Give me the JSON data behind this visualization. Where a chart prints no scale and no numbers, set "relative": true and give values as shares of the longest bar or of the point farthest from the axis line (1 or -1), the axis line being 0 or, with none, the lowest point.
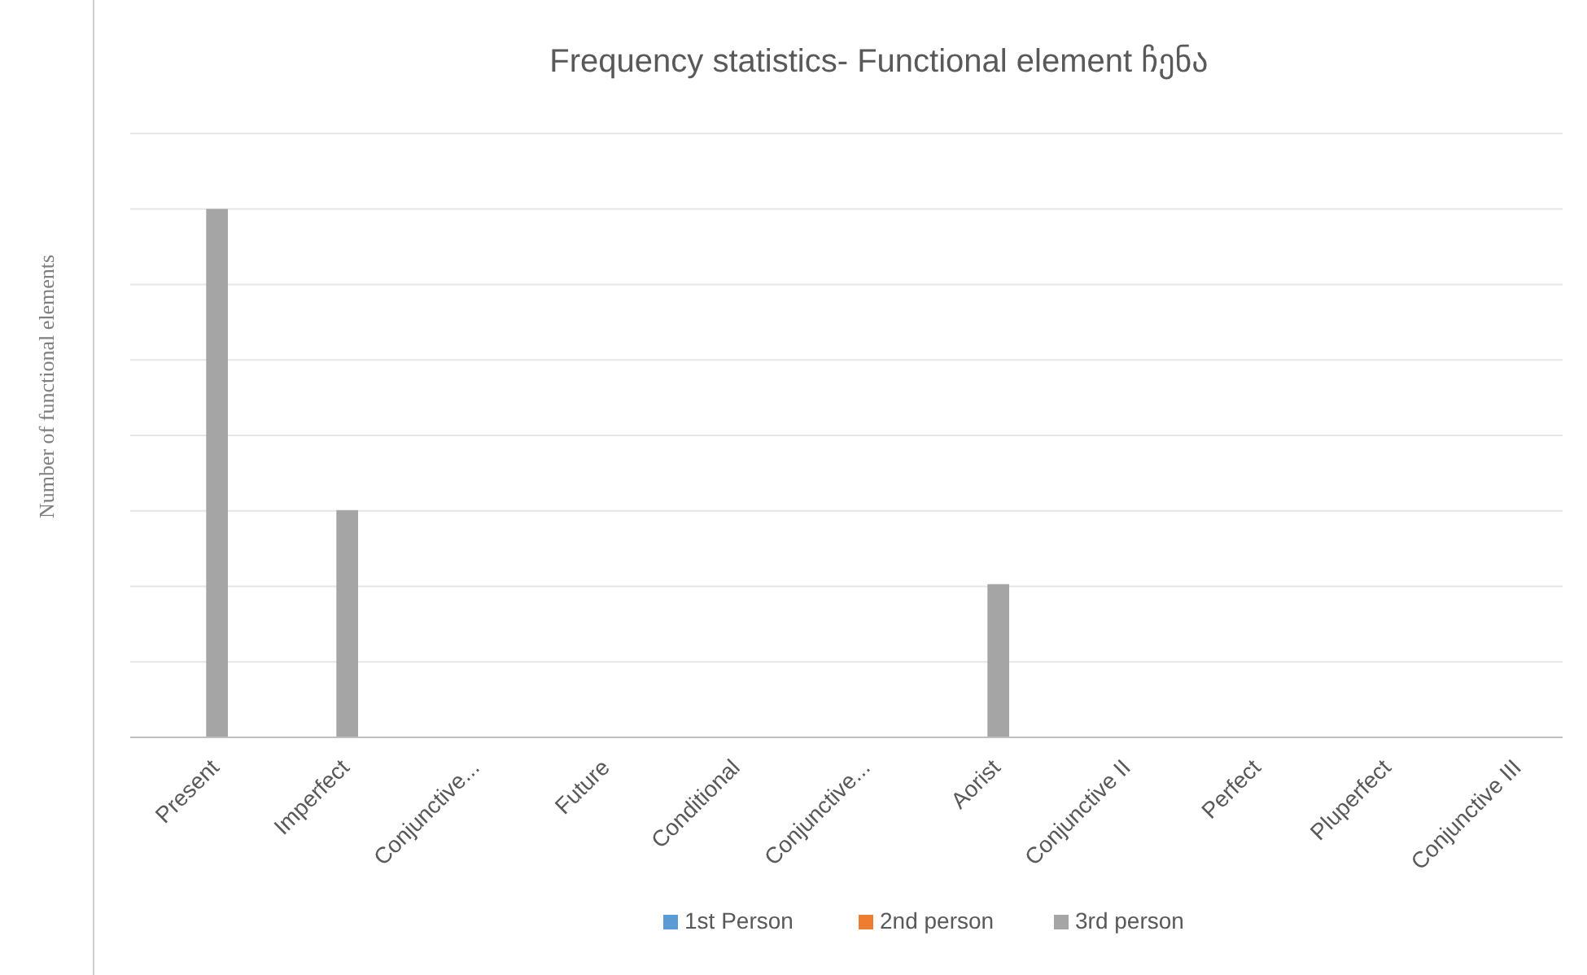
{
  "chart_data": {
    "type": "bar",
    "title": "Frequency statistics- Functional element ჩენა",
    "ylabel": "Number of functional elements",
    "relative": true,
    "grid": "y",
    "legend": "bottom",
    "categories": [
      "Present",
      "Imperfect",
      "Conjunctive...",
      "Future",
      "Conditional",
      "Conjunctive...",
      "Aorist",
      "Conjunctive II",
      "Perfect",
      "Pluperfect",
      "Conjunctive III"
    ],
    "series": [
      {
        "name": "1st Person",
        "color": "#5b9bd5",
        "values": [
          0,
          0,
          0,
          0,
          0,
          0,
          0,
          0,
          0,
          0,
          0
        ]
      },
      {
        "name": "2nd person",
        "color": "#ed7d31",
        "values": [
          0,
          0,
          0,
          0,
          0,
          0,
          0,
          0,
          0,
          0,
          0
        ]
      },
      {
        "name": "3rd person",
        "color": "#a5a5a5",
        "values": [
          1,
          0.43,
          0,
          0,
          0,
          0,
          0.29,
          0,
          0,
          0,
          0
        ]
      }
    ]
  }
}
